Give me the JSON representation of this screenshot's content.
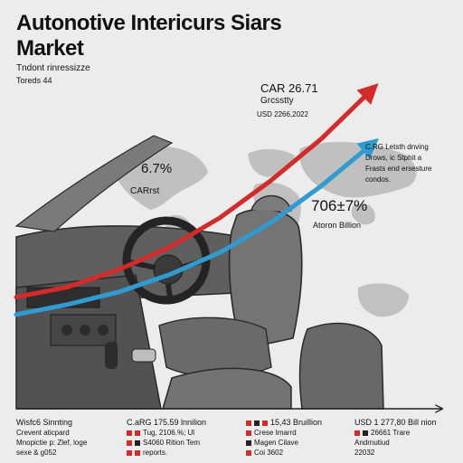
{
  "title_line1": "Autonotive Intericurs Siars",
  "title_line2": "Market",
  "subtitle_line1": "Tndont rinressizze",
  "subtitle_line2": "Toreds 44",
  "colors": {
    "red": "#d42a2a",
    "blue": "#2f9bd0",
    "dark": "#222222"
  },
  "chart_data": {
    "type": "line",
    "series": [
      {
        "color": "#d42a2a",
        "values": [
          10,
          14,
          21,
          30,
          42,
          57,
          74,
          94
        ]
      },
      {
        "color": "#2f9bd0",
        "values": [
          3,
          7,
          12,
          19,
          28,
          40,
          55,
          72
        ]
      }
    ],
    "ylim": [
      0,
      100
    ],
    "annotations": {
      "cagr_top": "CAR 26.71",
      "growth_label": "Grcsstty",
      "usd_label": "USD 2266,2022",
      "note_lines": [
        "C.RG Letsth dnving",
        "Drows, ic Stphit a",
        "Frasts end ersesture",
        "condos."
      ],
      "pct_left": "6.7%",
      "cagr_left": "CARrst",
      "pct_mid": "706±7%",
      "billion_mid": "Atoron Billion"
    }
  },
  "legend": {
    "col1": {
      "head": "Wisfc6 Sinnting",
      "lines": [
        "Crevent aticpard",
        "Mnopictie p: Zlef, loge",
        "sexe & g052"
      ]
    },
    "col2": {
      "head": "C.aRG 175.59 lnnilion",
      "items": [
        {
          "text": "Tug, 2106.%; Ul",
          "colors": [
            "#d42a2a",
            "#d42a2a"
          ]
        },
        {
          "text": "S4060 Rition Tem",
          "colors": [
            "#d42a2a",
            "#222222"
          ]
        },
        {
          "text": "reports.",
          "colors": [
            "#d42a2a",
            "#d42a2a"
          ]
        }
      ]
    },
    "col3": {
      "head": "15,43 Bruillion",
      "head_colors": [
        "#d42a2a",
        "#222222",
        "#d42a2a"
      ],
      "items": [
        {
          "text": "Crese Imarrd",
          "colors": [
            "#d42a2a"
          ]
        },
        {
          "text": "Magen Cilave",
          "colors": [
            "#222222"
          ]
        },
        {
          "text": "Coi 3602",
          "colors": [
            "#d42a2a"
          ]
        }
      ]
    },
    "col4": {
      "head": "USD 1 277,80 Bill nion",
      "items": [
        {
          "text": "26661 Trare",
          "colors": [
            "#d42a2a",
            "#222222"
          ]
        },
        {
          "text": "Andrnutiud",
          "colors": []
        },
        {
          "text": "22032",
          "colors": []
        }
      ]
    }
  }
}
